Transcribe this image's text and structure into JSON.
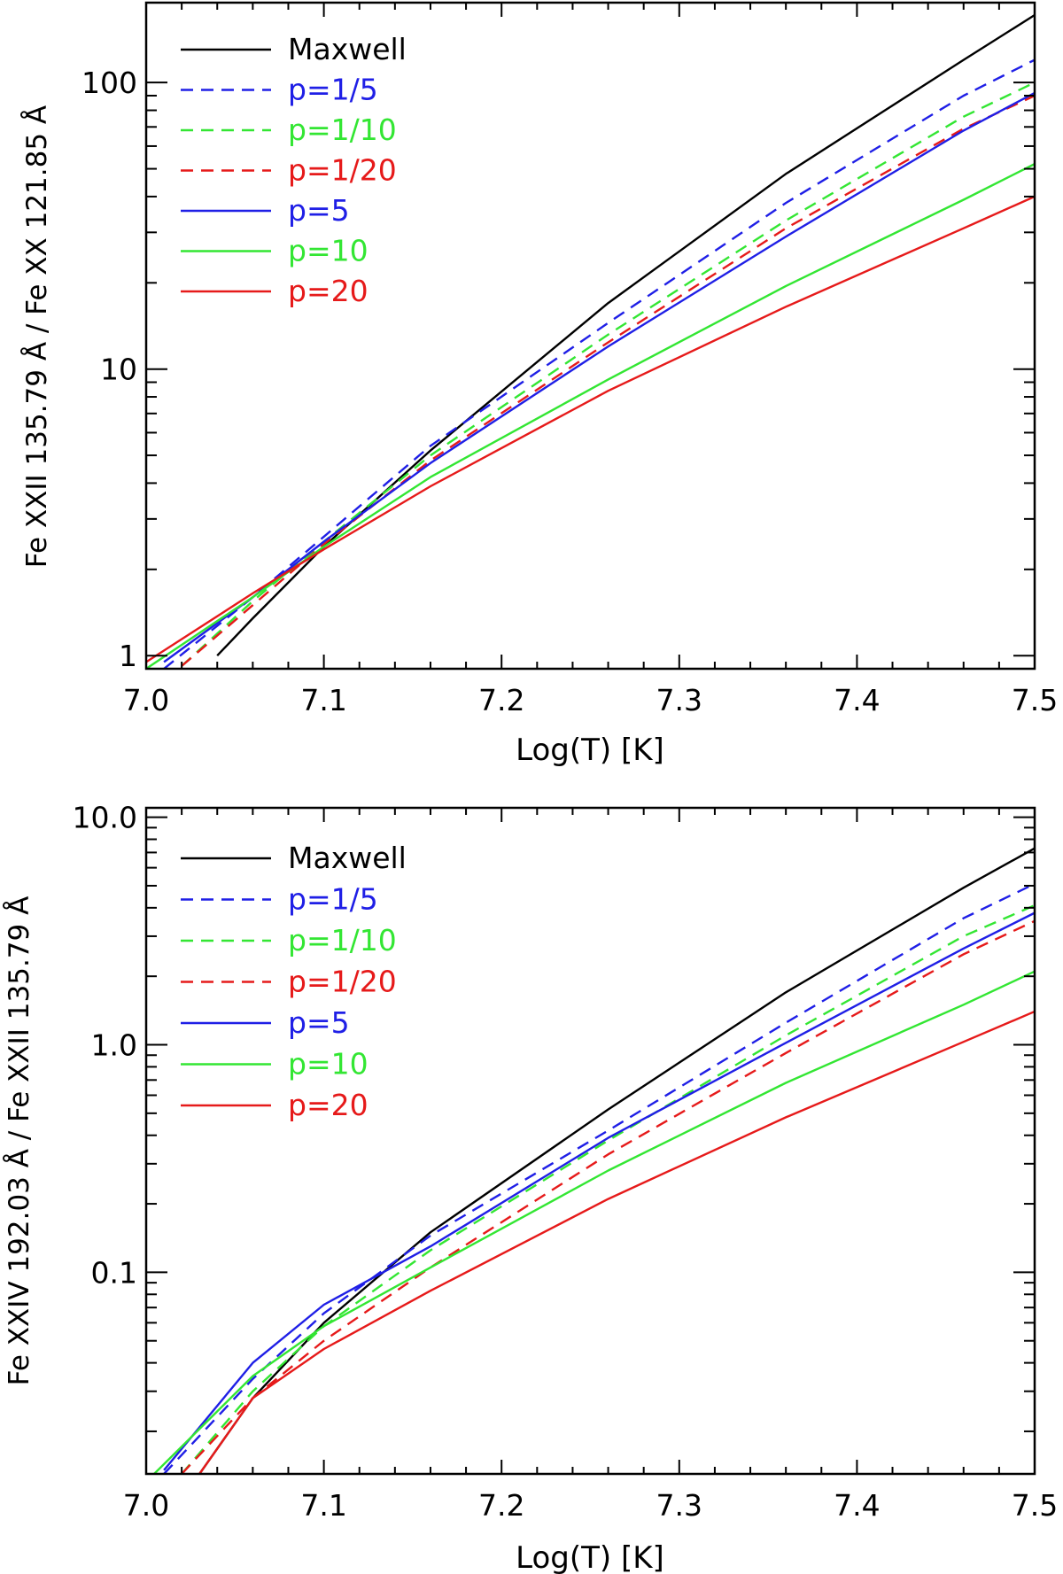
{
  "chart_data": [
    {
      "type": "line",
      "xlabel": "Log(T) [K]",
      "ylabel": "Fe XXII 135.79 Å / Fe XX 121.85 Å",
      "yscale": "log",
      "xlim": [
        7.0,
        7.5
      ],
      "ylim": [
        0.9,
        190
      ],
      "xticks": [
        "7.0",
        "7.1",
        "7.2",
        "7.3",
        "7.4",
        "7.5"
      ],
      "yticks": [
        {
          "value": 1,
          "label": "1"
        },
        {
          "value": 10,
          "label": "10"
        },
        {
          "value": 100,
          "label": "100"
        }
      ],
      "legend_position": "top-left",
      "series": [
        {
          "name": "Maxwell",
          "color": "#000000",
          "dash": "solid",
          "x": [
            7.04,
            7.06,
            7.1,
            7.16,
            7.26,
            7.36,
            7.46,
            7.5
          ],
          "y": [
            1.0,
            1.35,
            2.4,
            5.2,
            17,
            48,
            120,
            172
          ]
        },
        {
          "name": "p=1/5",
          "color": "#1f1fe6",
          "dash": "dashed",
          "x": [
            7.01,
            7.06,
            7.1,
            7.16,
            7.26,
            7.36,
            7.46,
            7.5
          ],
          "y": [
            0.9,
            1.6,
            2.6,
            5.4,
            14.5,
            38,
            90,
            120
          ]
        },
        {
          "name": "p=1/10",
          "color": "#33e633",
          "dash": "dashed",
          "x": [
            7.02,
            7.06,
            7.1,
            7.16,
            7.26,
            7.36,
            7.46,
            7.5
          ],
          "y": [
            0.92,
            1.55,
            2.5,
            5.0,
            13.2,
            33,
            76,
            100
          ]
        },
        {
          "name": "p=1/20",
          "color": "#e61a1a",
          "dash": "dashed",
          "x": [
            7.02,
            7.06,
            7.1,
            7.16,
            7.26,
            7.36,
            7.46,
            7.5
          ],
          "y": [
            0.92,
            1.5,
            2.45,
            4.8,
            12.4,
            31,
            69,
            90
          ]
        },
        {
          "name": "p=5",
          "color": "#1f1fe6",
          "dash": "solid",
          "x": [
            7.01,
            7.06,
            7.1,
            7.16,
            7.26,
            7.36,
            7.46,
            7.5
          ],
          "y": [
            0.95,
            1.6,
            2.5,
            4.7,
            12,
            29,
            68,
            92
          ]
        },
        {
          "name": "p=10",
          "color": "#33e633",
          "dash": "solid",
          "x": [
            7.0,
            7.06,
            7.1,
            7.16,
            7.26,
            7.36,
            7.46,
            7.5
          ],
          "y": [
            0.9,
            1.6,
            2.4,
            4.2,
            9.2,
            19.5,
            39,
            52
          ]
        },
        {
          "name": "p=20",
          "color": "#e61a1a",
          "dash": "solid",
          "x": [
            7.0,
            7.06,
            7.1,
            7.16,
            7.26,
            7.36,
            7.46,
            7.5
          ],
          "y": [
            0.95,
            1.65,
            2.35,
            3.9,
            8.4,
            16.5,
            31,
            40
          ]
        }
      ]
    },
    {
      "type": "line",
      "xlabel": "Log(T) [K]",
      "ylabel": "Fe XXIV 192.03 Å / Fe XXII 135.79 Å",
      "yscale": "log",
      "xlim": [
        7.0,
        7.5
      ],
      "ylim": [
        0.013,
        11
      ],
      "xticks": [
        "7.0",
        "7.1",
        "7.2",
        "7.3",
        "7.4",
        "7.5"
      ],
      "yticks": [
        {
          "value": 0.1,
          "label": "0.1"
        },
        {
          "value": 1,
          "label": "1.0"
        },
        {
          "value": 10,
          "label": "10.0"
        }
      ],
      "legend_position": "top-left",
      "series": [
        {
          "name": "Maxwell",
          "color": "#000000",
          "dash": "solid",
          "x": [
            7.03,
            7.06,
            7.1,
            7.16,
            7.26,
            7.36,
            7.46,
            7.5
          ],
          "y": [
            0.013,
            0.028,
            0.06,
            0.15,
            0.52,
            1.7,
            4.9,
            7.3
          ]
        },
        {
          "name": "p=1/5",
          "color": "#1f1fe6",
          "dash": "dashed",
          "x": [
            7.01,
            7.06,
            7.1,
            7.16,
            7.26,
            7.36,
            7.46,
            7.5
          ],
          "y": [
            0.013,
            0.034,
            0.066,
            0.145,
            0.42,
            1.25,
            3.6,
            5.1
          ]
        },
        {
          "name": "p=1/10",
          "color": "#33e633",
          "dash": "dashed",
          "x": [
            7.02,
            7.06,
            7.1,
            7.16,
            7.26,
            7.36,
            7.46,
            7.5
          ],
          "y": [
            0.013,
            0.03,
            0.058,
            0.125,
            0.38,
            1.1,
            3.0,
            4.1
          ]
        },
        {
          "name": "p=1/20",
          "color": "#e61a1a",
          "dash": "dashed",
          "x": [
            7.02,
            7.06,
            7.1,
            7.16,
            7.26,
            7.36,
            7.46,
            7.5
          ],
          "y": [
            0.013,
            0.028,
            0.05,
            0.105,
            0.33,
            0.92,
            2.5,
            3.5
          ]
        },
        {
          "name": "p=5",
          "color": "#1f1fe6",
          "dash": "solid",
          "x": [
            7.01,
            7.06,
            7.1,
            7.16,
            7.26,
            7.36,
            7.46,
            7.5
          ],
          "y": [
            0.0135,
            0.04,
            0.072,
            0.13,
            0.39,
            1.02,
            2.65,
            3.8
          ]
        },
        {
          "name": "p=10",
          "color": "#33e633",
          "dash": "solid",
          "x": [
            7.0,
            7.06,
            7.1,
            7.16,
            7.26,
            7.36,
            7.46,
            7.5
          ],
          "y": [
            0.012,
            0.035,
            0.058,
            0.105,
            0.28,
            0.68,
            1.5,
            2.1
          ]
        },
        {
          "name": "p=20",
          "color": "#e61a1a",
          "dash": "solid",
          "x": [
            7.03,
            7.06,
            7.1,
            7.16,
            7.26,
            7.36,
            7.46,
            7.5
          ],
          "y": [
            0.013,
            0.028,
            0.046,
            0.083,
            0.21,
            0.48,
            1.03,
            1.4
          ]
        }
      ]
    }
  ]
}
